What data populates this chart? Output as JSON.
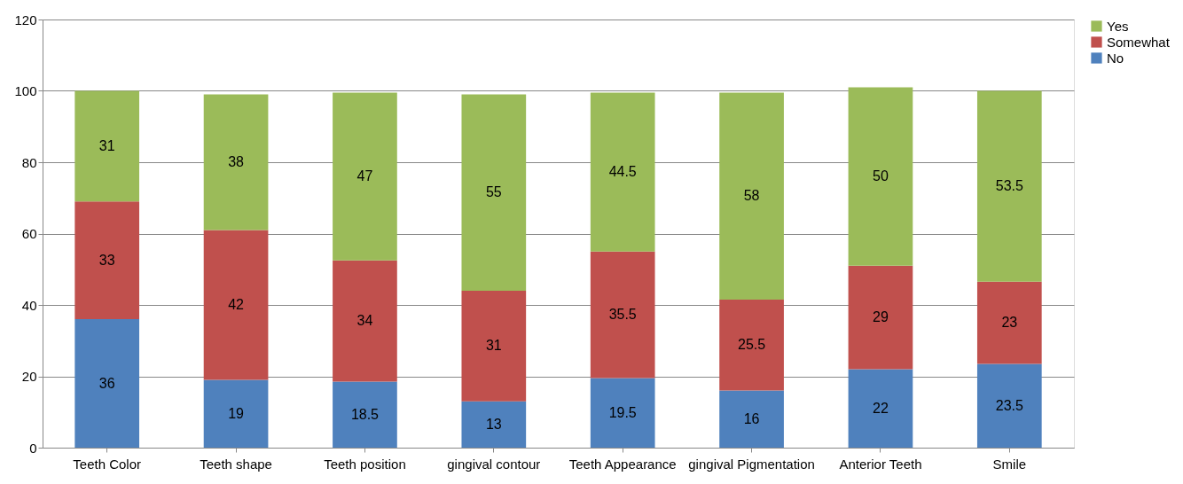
{
  "chart_data": {
    "type": "bar",
    "stacked": true,
    "categories": [
      "Teeth Color",
      "Teeth shape",
      "Teeth position",
      "gingival contour",
      "Teeth Appearance",
      "gingival Pigmentation",
      "Anterior Teeth",
      "Smile"
    ],
    "series": [
      {
        "name": "No",
        "color": "#4f81bd",
        "values": [
          36,
          19,
          18.5,
          13,
          19.5,
          16,
          22,
          23.5
        ]
      },
      {
        "name": "Somewhat",
        "color": "#c0504d",
        "values": [
          33,
          42,
          34,
          31,
          35.5,
          25.5,
          29,
          23
        ]
      },
      {
        "name": "Yes",
        "color": "#9bbb59",
        "values": [
          31,
          38,
          47,
          55,
          44.5,
          58,
          50,
          53.5
        ]
      }
    ],
    "ylim": [
      0,
      120
    ],
    "yticks": [
      0,
      20,
      40,
      60,
      80,
      100,
      120
    ],
    "grid": "y",
    "legend": "right",
    "data_labels": true
  }
}
